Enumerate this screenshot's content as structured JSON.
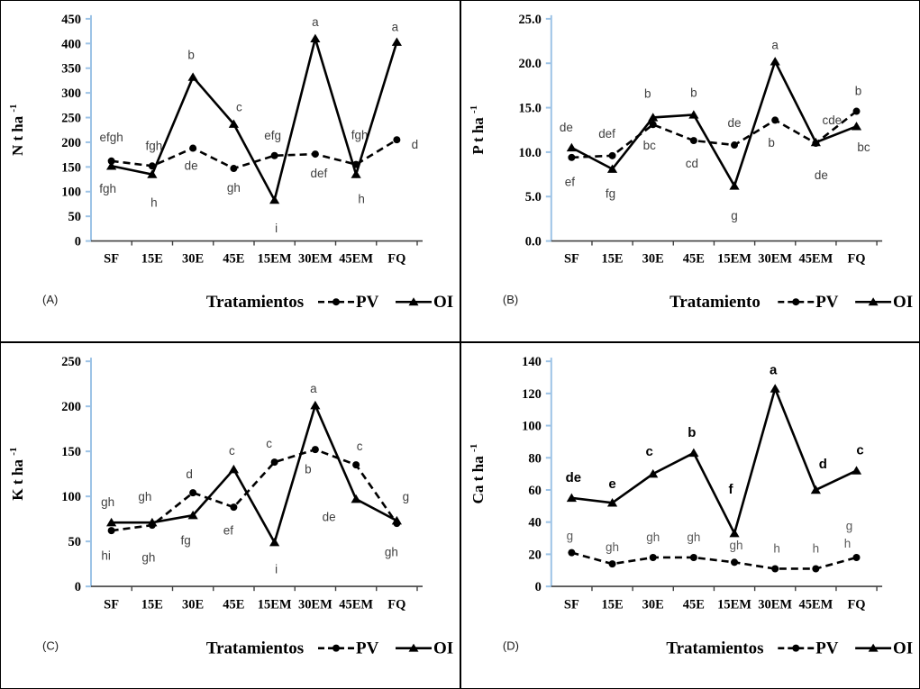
{
  "colors": {
    "axis_blue": "#9DC3E6",
    "x_axis": "#404040",
    "series_line": "#000000",
    "annotation_gray": "#3f3f3f",
    "annotation_gray_light": "#595959"
  },
  "legend": {
    "pv_label": "PV",
    "oi_label": "OI"
  },
  "chart_data": [
    {
      "type": "line",
      "panel_tag": "(A)",
      "ylabel_base": "N t ha",
      "ylabel_sup": "-1",
      "xlabel": "Tratamientos",
      "categories": [
        "SF",
        "15E",
        "30E",
        "45E",
        "15EM",
        "30EM",
        "45EM",
        "FQ"
      ],
      "ylim": [
        0,
        450
      ],
      "ystep": 50,
      "ydecimals": 0,
      "grid": false,
      "legend_position": "bottom-right",
      "series": [
        {
          "name": "PV",
          "line": "dashed",
          "marker": "circle",
          "values": [
            162,
            152,
            188,
            147,
            173,
            176,
            155,
            205
          ],
          "annotations": [
            {
              "i": 0,
              "t": "efgh",
              "dx": 0,
              "dy": -22
            },
            {
              "i": 1,
              "t": "fgh",
              "dx": 2,
              "dy": -18
            },
            {
              "i": 2,
              "t": "de",
              "dx": -2,
              "dy": 24
            },
            {
              "i": 3,
              "t": "gh",
              "dx": 0,
              "dy": 26
            },
            {
              "i": 4,
              "t": "efg",
              "dx": -2,
              "dy": -18
            },
            {
              "i": 5,
              "t": "def",
              "dx": 4,
              "dy": 26
            },
            {
              "i": 6,
              "t": "fgh",
              "dx": 4,
              "dy": -28
            },
            {
              "i": 7,
              "t": "d",
              "dx": 20,
              "dy": 10
            }
          ]
        },
        {
          "name": "OI",
          "line": "solid",
          "marker": "triangle",
          "values": [
            152,
            135,
            332,
            237,
            83,
            410,
            135,
            403
          ],
          "annotations": [
            {
              "i": 0,
              "t": "fgh",
              "dx": -4,
              "dy": 30
            },
            {
              "i": 1,
              "t": "h",
              "dx": 2,
              "dy": 36
            },
            {
              "i": 2,
              "t": "b",
              "dx": -2,
              "dy": -20
            },
            {
              "i": 3,
              "t": "c",
              "dx": 6,
              "dy": -14
            },
            {
              "i": 4,
              "t": "i",
              "dx": 2,
              "dy": 36
            },
            {
              "i": 5,
              "t": "a",
              "dx": 0,
              "dy": -14
            },
            {
              "i": 6,
              "t": "h",
              "dx": 6,
              "dy": 32
            },
            {
              "i": 7,
              "t": "a",
              "dx": -2,
              "dy": -12
            }
          ]
        }
      ]
    },
    {
      "type": "line",
      "panel_tag": "(B)",
      "ylabel_base": "P t ha",
      "ylabel_sup": "-1",
      "xlabel": "Tratamiento",
      "categories": [
        "SF",
        "15E",
        "30E",
        "45E",
        "15EM",
        "30EM",
        "45EM",
        "FQ"
      ],
      "ylim": [
        0,
        25
      ],
      "ystep": 5,
      "ydecimals": 1,
      "grid": false,
      "legend_position": "bottom-right",
      "series": [
        {
          "name": "PV",
          "line": "dashed",
          "marker": "circle",
          "values": [
            9.4,
            9.6,
            13.1,
            11.3,
            10.8,
            13.6,
            11.0,
            14.6
          ],
          "annotations": [
            {
              "i": 0,
              "t": "ef",
              "dx": -2,
              "dy": 32
            },
            {
              "i": 1,
              "t": "def",
              "dx": -6,
              "dy": -20
            },
            {
              "i": 2,
              "t": "bc",
              "dx": -4,
              "dy": 28
            },
            {
              "i": 3,
              "t": "cd",
              "dx": -2,
              "dy": 30
            },
            {
              "i": 4,
              "t": "de",
              "dx": 0,
              "dy": -20
            },
            {
              "i": 5,
              "t": "b",
              "dx": -4,
              "dy": 30
            },
            {
              "i": 6,
              "t": "de",
              "dx": 6,
              "dy": 40
            },
            {
              "i": 7,
              "t": "b",
              "dx": 2,
              "dy": -18
            }
          ]
        },
        {
          "name": "OI",
          "line": "solid",
          "marker": "triangle",
          "values": [
            10.5,
            8.1,
            13.9,
            14.2,
            6.2,
            20.2,
            11.1,
            12.9
          ],
          "annotations": [
            {
              "i": 0,
              "t": "de",
              "dx": -6,
              "dy": -18
            },
            {
              "i": 1,
              "t": "fg",
              "dx": -2,
              "dy": 32
            },
            {
              "i": 2,
              "t": "b",
              "dx": -6,
              "dy": -22
            },
            {
              "i": 3,
              "t": "b",
              "dx": 0,
              "dy": -20
            },
            {
              "i": 4,
              "t": "g",
              "dx": 0,
              "dy": 38
            },
            {
              "i": 5,
              "t": "a",
              "dx": 0,
              "dy": -14
            },
            {
              "i": 6,
              "t": "cde",
              "dx": 18,
              "dy": -20
            },
            {
              "i": 7,
              "t": "bc",
              "dx": 8,
              "dy": 28
            }
          ]
        }
      ]
    },
    {
      "type": "line",
      "panel_tag": "(C)",
      "ylabel_base": "K t ha",
      "ylabel_sup": "-1",
      "xlabel": "Tratamientos",
      "categories": [
        "SF",
        "15E",
        "30E",
        "45E",
        "15EM",
        "30EM",
        "45EM",
        "FQ"
      ],
      "ylim": [
        0,
        250
      ],
      "ystep": 50,
      "ydecimals": 0,
      "grid": false,
      "legend_position": "bottom-right",
      "series": [
        {
          "name": "PV",
          "line": "dashed",
          "marker": "circle",
          "values": [
            62,
            68,
            104,
            88,
            138,
            152,
            135,
            70
          ],
          "annotations": [
            {
              "i": 0,
              "t": "hi",
              "dx": -6,
              "dy": 32
            },
            {
              "i": 1,
              "t": "gh",
              "dx": -4,
              "dy": 40
            },
            {
              "i": 2,
              "t": "d",
              "dx": -4,
              "dy": -16
            },
            {
              "i": 3,
              "t": "ef",
              "dx": -6,
              "dy": 30
            },
            {
              "i": 4,
              "t": "c",
              "dx": -6,
              "dy": -16
            },
            {
              "i": 5,
              "t": "b",
              "dx": -8,
              "dy": 26
            },
            {
              "i": 6,
              "t": "c",
              "dx": 4,
              "dy": -16
            },
            {
              "i": 7,
              "t": "gh",
              "dx": -6,
              "dy": 36
            }
          ]
        },
        {
          "name": "OI",
          "line": "solid",
          "marker": "triangle",
          "values": [
            71,
            71,
            79,
            130,
            49,
            201,
            97,
            73
          ],
          "annotations": [
            {
              "i": 0,
              "t": "gh",
              "dx": -4,
              "dy": -18
            },
            {
              "i": 1,
              "t": "gh",
              "dx": -8,
              "dy": -24
            },
            {
              "i": 2,
              "t": "fg",
              "dx": -8,
              "dy": 32
            },
            {
              "i": 3,
              "t": "c",
              "dx": -2,
              "dy": -16
            },
            {
              "i": 4,
              "t": "i",
              "dx": 2,
              "dy": 34
            },
            {
              "i": 5,
              "t": "a",
              "dx": -2,
              "dy": -14
            },
            {
              "i": 6,
              "t": "de",
              "dx": -30,
              "dy": 24
            },
            {
              "i": 7,
              "t": "g",
              "dx": 10,
              "dy": -22
            }
          ]
        }
      ]
    },
    {
      "type": "line",
      "panel_tag": "(D)",
      "ylabel_base": "Ca t ha",
      "ylabel_sup": "-1",
      "xlabel": "Tratamientos",
      "categories": [
        "SF",
        "15E",
        "30E",
        "45E",
        "15EM",
        "30EM",
        "45EM",
        "FQ"
      ],
      "ylim": [
        0,
        140
      ],
      "ystep": 20,
      "ydecimals": 0,
      "grid": false,
      "legend_position": "bottom-right",
      "series": [
        {
          "name": "PV",
          "line": "dashed",
          "marker": "circle",
          "values": [
            21,
            14,
            18,
            18,
            15,
            11,
            11,
            18
          ],
          "annotations": [
            {
              "i": 0,
              "t": "g",
              "g": 1,
              "dx": -2,
              "dy": -14
            },
            {
              "i": 1,
              "t": "gh",
              "g": 1,
              "dx": 0,
              "dy": -14
            },
            {
              "i": 2,
              "t": "gh",
              "g": 1,
              "dx": 0,
              "dy": -18
            },
            {
              "i": 3,
              "t": "gh",
              "g": 1,
              "dx": 0,
              "dy": -18
            },
            {
              "i": 4,
              "t": "gh",
              "g": 1,
              "dx": 2,
              "dy": -14
            },
            {
              "i": 5,
              "t": "h",
              "g": 1,
              "dx": 2,
              "dy": -18
            },
            {
              "i": 6,
              "t": "h",
              "g": 1,
              "dx": 0,
              "dy": -18
            },
            {
              "i": 7,
              "t": "g",
              "g": 1,
              "dx": -8,
              "dy": -30
            },
            {
              "i": 7,
              "t": "h",
              "g": 1,
              "dx": -10,
              "dy": -11
            }
          ]
        },
        {
          "name": "OI",
          "line": "solid",
          "marker": "triangle",
          "values": [
            55,
            52,
            70,
            83,
            33,
            123,
            60,
            72
          ],
          "annotations": [
            {
              "i": 0,
              "t": "de",
              "b": 1,
              "dx": 2,
              "dy": -18
            },
            {
              "i": 1,
              "t": "e",
              "b": 1,
              "dx": 0,
              "dy": -16
            },
            {
              "i": 2,
              "t": "c",
              "b": 1,
              "dx": -4,
              "dy": -20
            },
            {
              "i": 3,
              "t": "b",
              "b": 1,
              "dx": -2,
              "dy": -18
            },
            {
              "i": 4,
              "t": "f",
              "b": 1,
              "dx": -4,
              "dy": -44
            },
            {
              "i": 5,
              "t": "a",
              "b": 1,
              "dx": -2,
              "dy": -16
            },
            {
              "i": 6,
              "t": "d",
              "b": 1,
              "dx": 8,
              "dy": -24
            },
            {
              "i": 7,
              "t": "c",
              "b": 1,
              "dx": 4,
              "dy": -18
            }
          ]
        }
      ]
    }
  ]
}
